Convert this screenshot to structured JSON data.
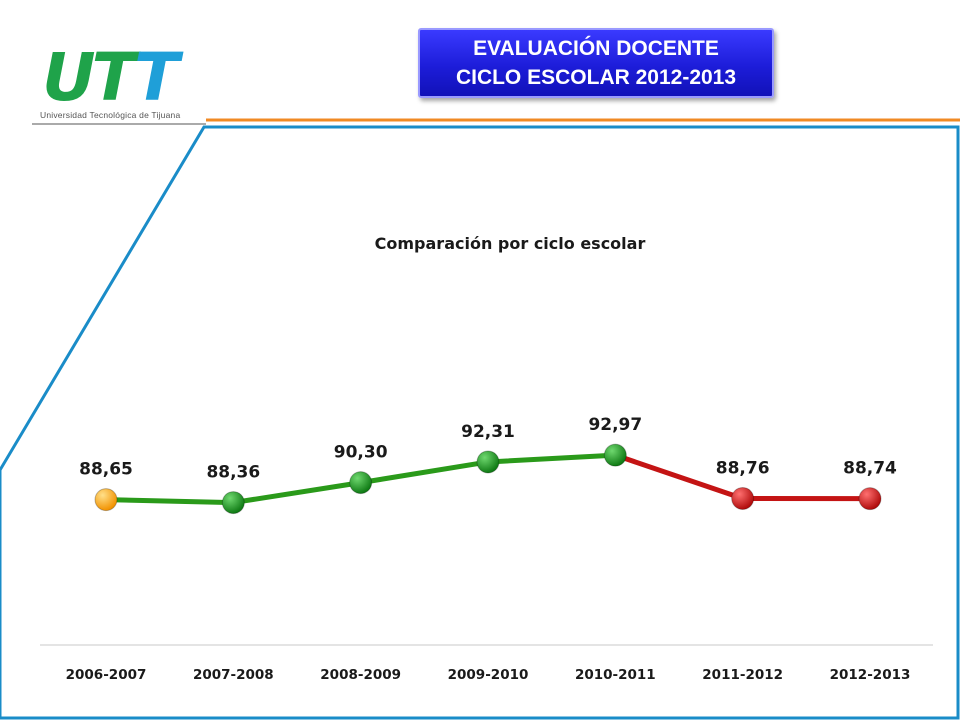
{
  "header": {
    "title_line1": "EVALUACIÓN DOCENTE",
    "title_line2": "CICLO ESCOLAR 2012-2013",
    "logo_text": "UTT",
    "logo_subtitle": "Universidad Tecnológica de Tijuana"
  },
  "colors": {
    "logo_green": "#1fa34a",
    "logo_blue": "#1f9fd8",
    "accent_orange": "#f08a24",
    "frame_blue": "#1a8cc8",
    "line_green": "#2a9a1a",
    "line_red": "#c41414",
    "marker_orange": "#ffa000",
    "marker_green": "#1f8f1f",
    "marker_red": "#d41a1a"
  },
  "chart_data": {
    "type": "line",
    "title": "Comparación por ciclo escolar",
    "categories": [
      "2006-2007",
      "2007-2008",
      "2008-2009",
      "2009-2010",
      "2010-2011",
      "2011-2012",
      "2012-2013"
    ],
    "values": [
      88.65,
      88.36,
      90.3,
      92.31,
      92.97,
      88.76,
      88.74
    ],
    "data_labels": [
      "88,65",
      "88,36",
      "90,30",
      "92,31",
      "92,97",
      "88,76",
      "88,74"
    ],
    "point_colors": [
      "orange",
      "green",
      "green",
      "green",
      "green",
      "red",
      "red"
    ],
    "segment_colors": [
      "green",
      "green",
      "green",
      "green",
      "red",
      "red"
    ],
    "xlabel": "",
    "ylabel": "",
    "ylim": [
      75,
      110
    ],
    "grid": false,
    "legend": "none"
  }
}
